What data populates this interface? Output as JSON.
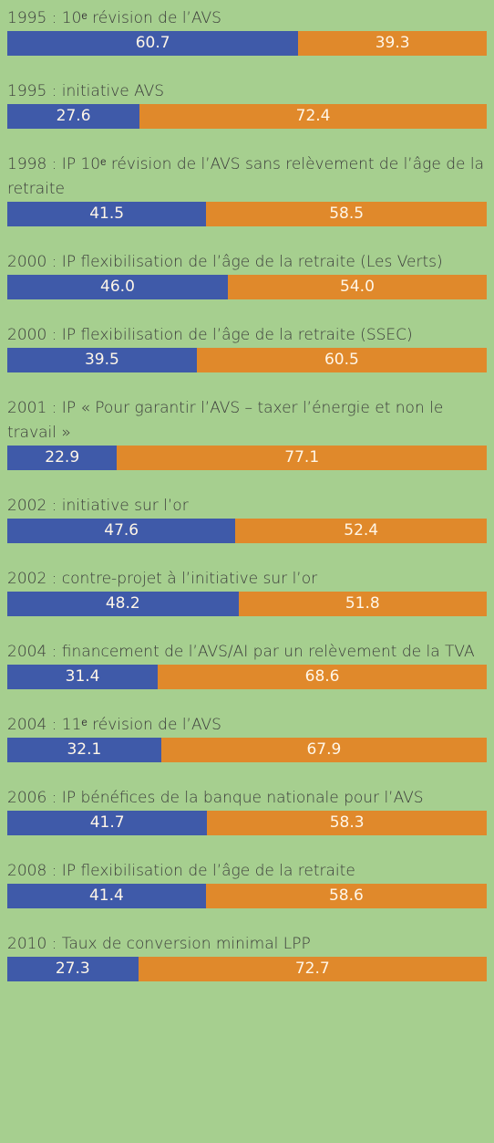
{
  "chart_data": {
    "type": "bar",
    "orientation": "horizontal",
    "stacked": true,
    "categories": [
      "1995 : 10ᵉ révision de l’AVS",
      "1995 : initiative AVS",
      "1998 : IP 10ᵉ révision de l’AVS sans relèvement de l’âge de la retraite",
      "2000 : IP flexibilisation de l’âge de la retraite (Les Verts)",
      "2000 : IP flexibilisation de l’âge de la retraite (SSEC)",
      "2001 : IP « Pour garantir l’AVS – taxer l’énergie et non le travail »",
      "2002 : initiative sur l’or",
      "2002 : contre-projet à l’initiative sur l’or",
      "2004 : financement de l’AVS/AI par un relèvement de la TVA",
      "2004 : 11ᵉ révision de l’AVS",
      "2006 : IP bénéfices de la banque nationale pour l’AVS",
      "2008 : IP flexibilisation de l’âge de la retraite",
      "2010 : Taux de conversion minimal LPP"
    ],
    "series": [
      {
        "color": "#3f5aa9",
        "values": [
          60.7,
          27.6,
          41.5,
          46.0,
          39.5,
          22.9,
          47.6,
          48.2,
          31.4,
          32.1,
          41.7,
          41.4,
          27.3
        ],
        "value_labels": [
          "60.7",
          "27.6",
          "41.5",
          "46.0",
          "39.5",
          "22.9",
          "47.6",
          "48.2",
          "31.4",
          "32.1",
          "41.7",
          "41.4",
          "27.3"
        ]
      },
      {
        "color": "#e0892b",
        "values": [
          39.3,
          72.4,
          58.5,
          54.0,
          60.5,
          77.1,
          52.4,
          51.8,
          68.6,
          67.9,
          58.3,
          58.6,
          72.7
        ],
        "value_labels": [
          "39.3",
          "72.4",
          "58.5",
          "54.0",
          "60.5",
          "77.1",
          "52.4",
          "51.8",
          "68.6",
          "67.9",
          "58.3",
          "58.6",
          "72.7"
        ]
      }
    ],
    "xlim": [
      0,
      100
    ]
  }
}
